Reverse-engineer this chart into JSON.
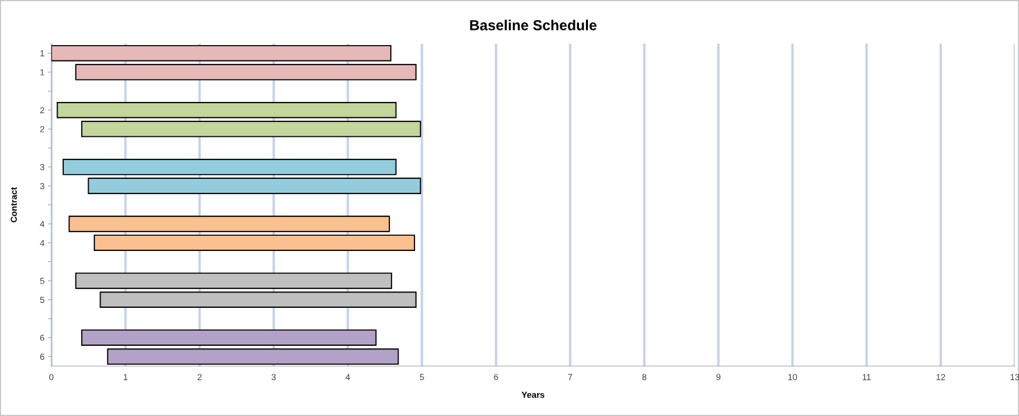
{
  "chart_data": {
    "type": "bar",
    "orientation": "horizontal",
    "title": "Baseline Schedule",
    "xlabel": "Years",
    "ylabel": "Contract",
    "categories": [
      "1",
      "1",
      null,
      "2",
      "2",
      null,
      "3",
      "3",
      null,
      "4",
      "4",
      null,
      "5",
      "5",
      null,
      "6",
      "6"
    ],
    "base": [
      0,
      0.33,
      null,
      0.08,
      0.41,
      null,
      0.16,
      0.5,
      null,
      0.24,
      0.58,
      null,
      0.33,
      0.66,
      null,
      0.41,
      0.76
    ],
    "values": [
      4.58,
      4.59,
      null,
      4.57,
      4.57,
      null,
      4.49,
      4.48,
      null,
      4.32,
      4.32,
      null,
      4.26,
      4.26,
      null,
      3.97,
      3.92
    ],
    "colors": [
      "#e6b9b8",
      "#e6b9b8",
      null,
      "#c3d69b",
      "#c3d69b",
      null,
      "#93cddd",
      "#93cddd",
      null,
      "#fac090",
      "#fac090",
      null,
      "#bfbfbf",
      "#bfbfbf",
      null,
      "#b3a2c7",
      "#b3a2c7"
    ],
    "xlim": [
      0,
      13
    ],
    "xticks": [
      0,
      1,
      2,
      3,
      4,
      5,
      6,
      7,
      8,
      9,
      10,
      11,
      12,
      13
    ],
    "grid": "x"
  }
}
